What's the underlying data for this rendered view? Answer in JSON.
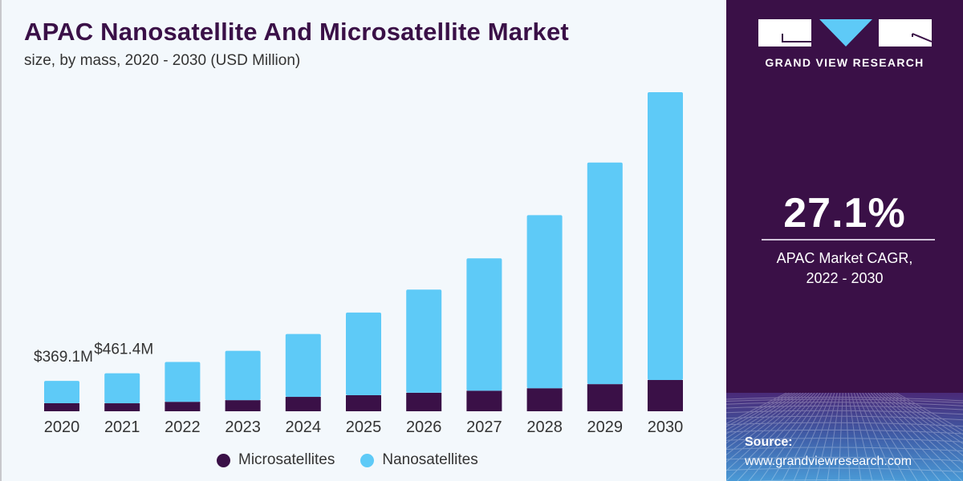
{
  "header": {
    "title": "APAC Nanosatellite And Microsatellite Market",
    "subtitle": "size, by mass, 2020 - 2030 (USD Million)"
  },
  "colors": {
    "microsatellites": "#3a1047",
    "nanosatellites": "#5ecaf7",
    "panel_bg": "#3a1047",
    "title": "#3a1047"
  },
  "chart_data": {
    "type": "bar",
    "stacked": true,
    "title": "APAC Nanosatellite And Microsatellite Market",
    "subtitle": "size, by mass, 2020 - 2030 (USD Million)",
    "xlabel": "",
    "ylabel": "USD Million",
    "categories": [
      "2020",
      "2021",
      "2022",
      "2023",
      "2024",
      "2025",
      "2026",
      "2027",
      "2028",
      "2029",
      "2030"
    ],
    "series": [
      {
        "name": "Microsatellites",
        "color": "#3a1047",
        "values": [
          98,
          97,
          115,
          135,
          175,
          195,
          225,
          250,
          280,
          330,
          380
        ]
      },
      {
        "name": "Nanosatellites",
        "color": "#5ecaf7",
        "values": [
          271.1,
          364.4,
          485,
          600,
          765,
          1005,
          1255,
          1610,
          2105,
          2695,
          3500
        ]
      }
    ],
    "totals": [
      369.1,
      461.4,
      600,
      735,
      940,
      1200,
      1480,
      1860,
      2385,
      3025,
      3880
    ],
    "annotations": [
      {
        "category": "2020",
        "text": "$369.1M"
      },
      {
        "category": "2021",
        "text": "$461.4M"
      }
    ],
    "ylim": [
      0,
      3900
    ],
    "grid": false,
    "legend_position": "bottom-center"
  },
  "legend": {
    "items": [
      {
        "label": "Microsatellites",
        "color": "#3a1047"
      },
      {
        "label": "Nanosatellites",
        "color": "#5ecaf7"
      }
    ]
  },
  "panel": {
    "logo_text": "GRAND VIEW RESEARCH",
    "cagr_value": "27.1%",
    "cagr_label_line1": "APAC Market CAGR,",
    "cagr_label_line2": "2022 - 2030",
    "source_title": "Source:",
    "source_url": "www.grandviewresearch.com"
  }
}
